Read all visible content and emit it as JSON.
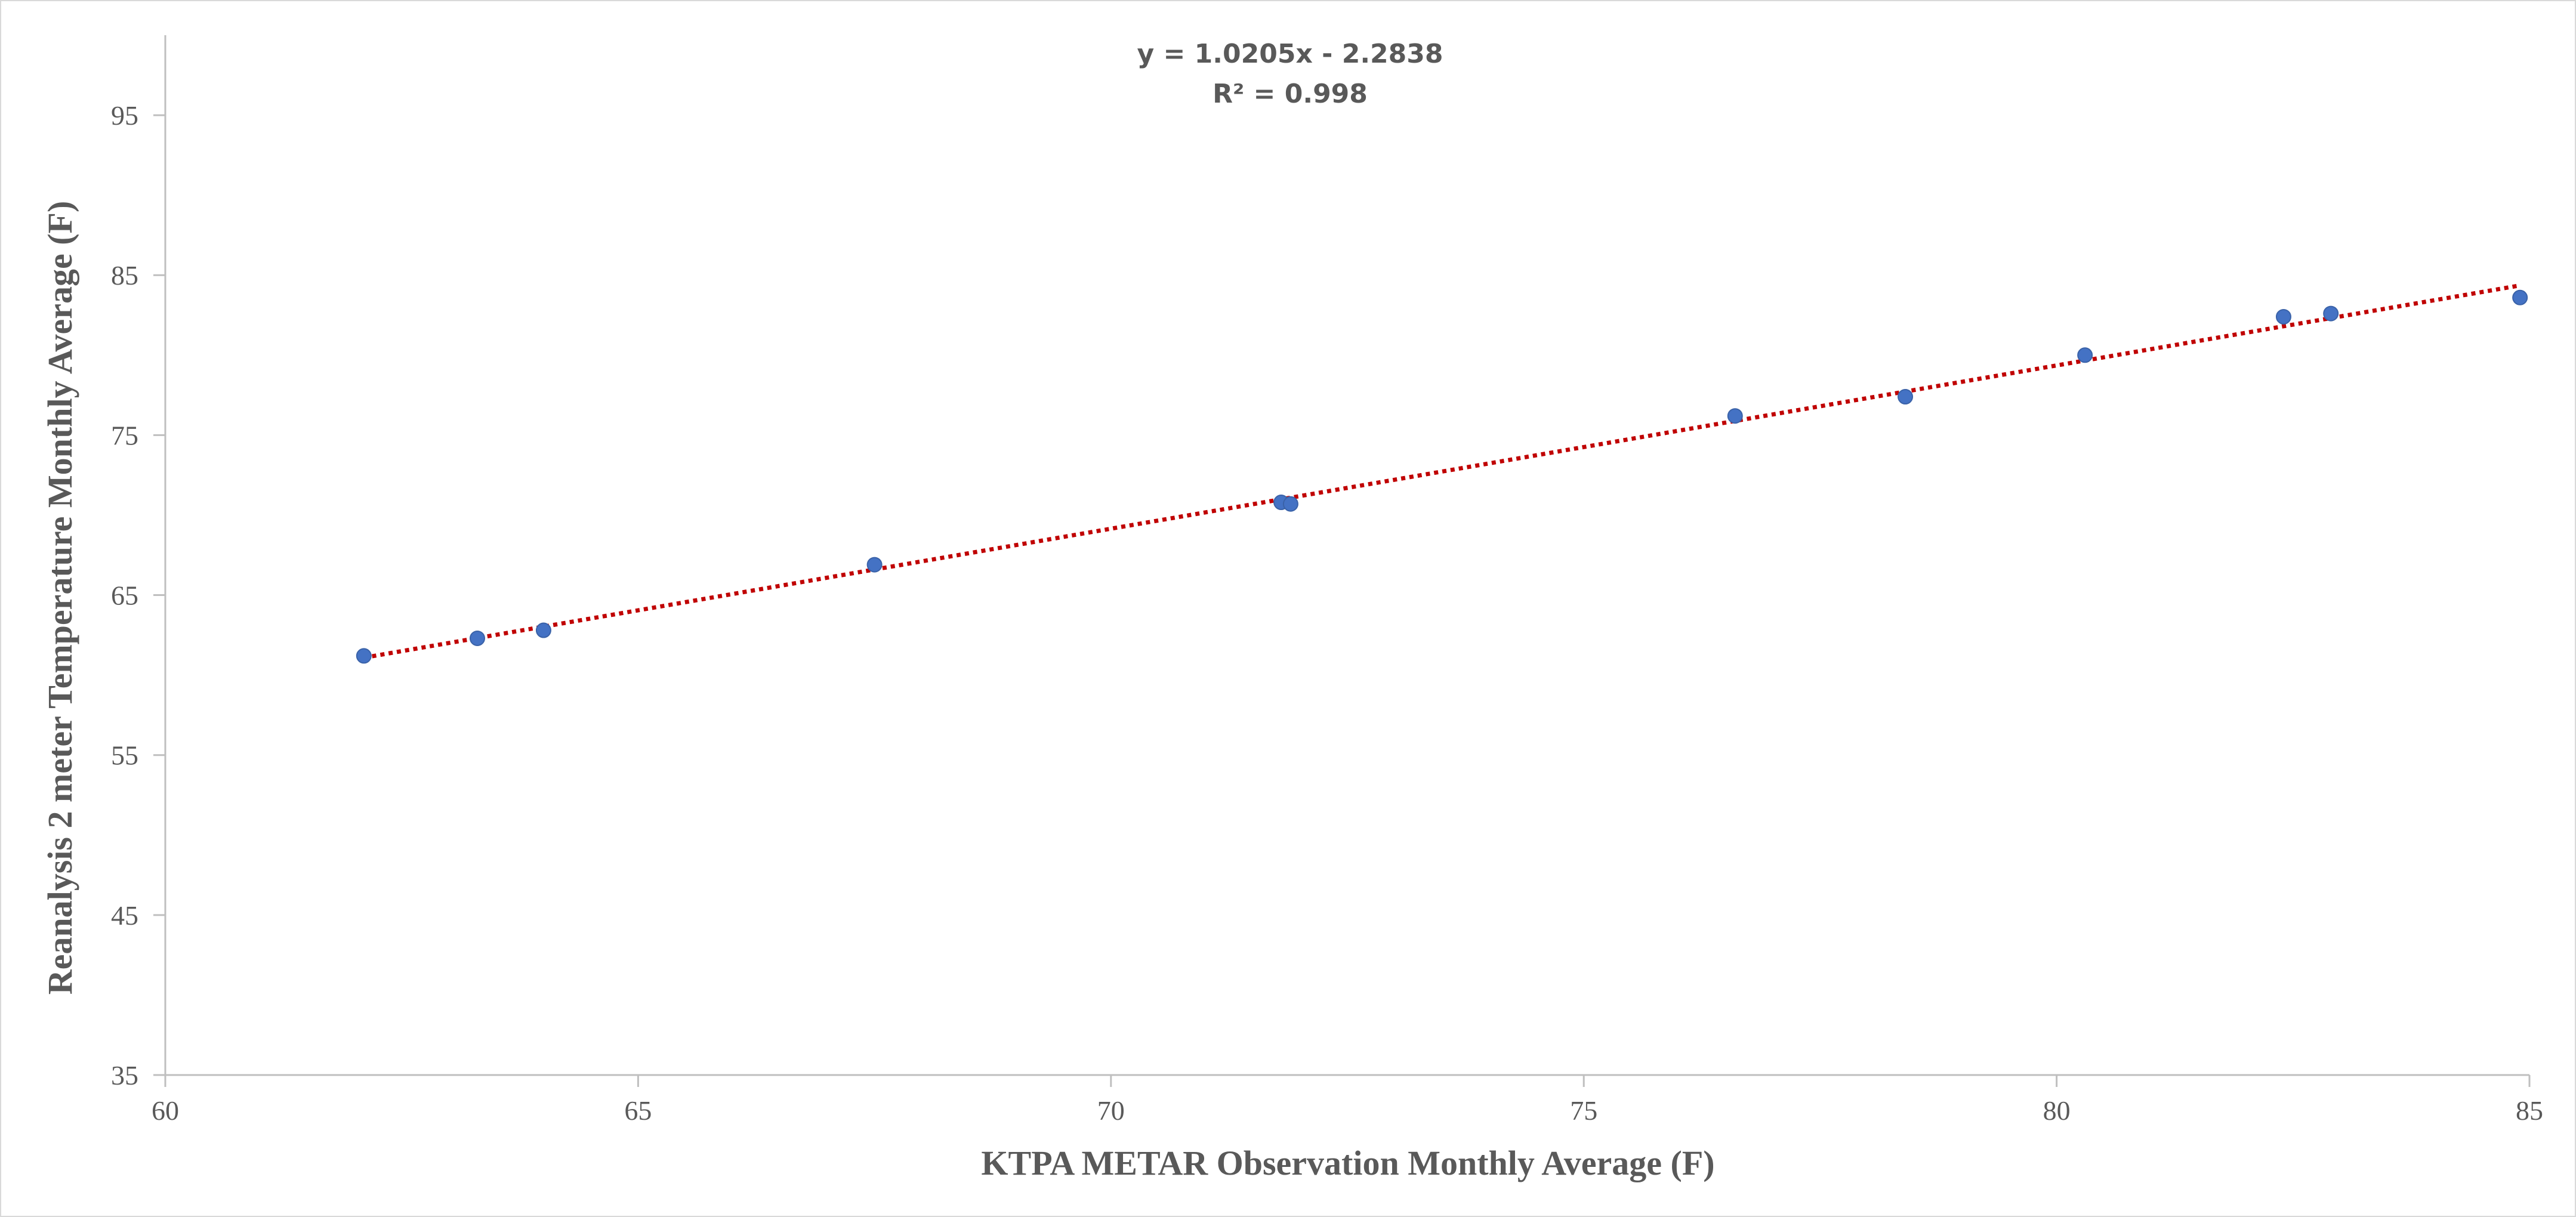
{
  "chart_data": {
    "type": "scatter",
    "title": "",
    "xlabel": "KTPA METAR Observation Monthly Average (F)",
    "ylabel": "Reanalysis 2 meter Temperature Monthly Average (F)",
    "xlim": [
      60,
      85
    ],
    "ylim": [
      35,
      100
    ],
    "x_ticks": [
      60,
      65,
      70,
      75,
      80,
      85
    ],
    "y_ticks": [
      35,
      45,
      55,
      65,
      75,
      85,
      95
    ],
    "grid": false,
    "legend": "none",
    "series": [
      {
        "color": "#4472c4",
        "points": [
          {
            "x": 62.1,
            "y": 61.2
          },
          {
            "x": 63.3,
            "y": 62.3
          },
          {
            "x": 64.0,
            "y": 62.8
          },
          {
            "x": 67.5,
            "y": 66.9
          },
          {
            "x": 71.8,
            "y": 70.8
          },
          {
            "x": 71.9,
            "y": 70.7
          },
          {
            "x": 76.6,
            "y": 76.2
          },
          {
            "x": 78.4,
            "y": 77.4
          },
          {
            "x": 80.3,
            "y": 80.0
          },
          {
            "x": 82.4,
            "y": 82.4
          },
          {
            "x": 82.9,
            "y": 82.6
          },
          {
            "x": 84.9,
            "y": 83.6
          }
        ]
      }
    ],
    "trendline": {
      "type": "linear",
      "slope": 1.0205,
      "intercept": -2.2838,
      "x_range": [
        62.1,
        84.9
      ],
      "color": "#c00000",
      "style": "dotted",
      "equation_label": "y = 1.0205x - 2.2838",
      "r2_label": "R² = 0.998"
    },
    "colors": {
      "axis": "#bfbfbf",
      "text": "#595959",
      "marker": "#4472c4",
      "trendline": "#c00000"
    }
  }
}
